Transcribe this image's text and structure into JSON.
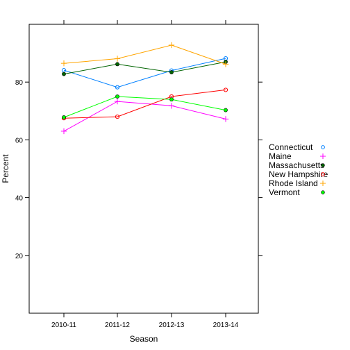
{
  "chart_data": {
    "type": "line",
    "title": "",
    "xlabel": "Season",
    "ylabel": "Percent",
    "categories": [
      "2010-11",
      "2011-12",
      "2012-13",
      "2013-14"
    ],
    "yticks": [
      20,
      40,
      60,
      80
    ],
    "ylim": [
      0,
      100
    ],
    "grid": false,
    "legend_position": "right",
    "series": [
      {
        "name": "Connecticut",
        "color": "#0080ff",
        "marker": "open-circle",
        "values": [
          84.1,
          78.2,
          84.0,
          88.2
        ]
      },
      {
        "name": "Maine",
        "color": "#ff00ff",
        "marker": "plus",
        "values": [
          63.0,
          73.3,
          71.8,
          67.2
        ]
      },
      {
        "name": "Massachusetts",
        "color": "#006400",
        "marker": "filled-circle",
        "values": [
          82.8,
          86.2,
          83.4,
          87.0
        ]
      },
      {
        "name": "New Hampshire",
        "color": "#ff0000",
        "marker": "open-circle",
        "values": [
          67.5,
          68.0,
          75.0,
          77.3
        ]
      },
      {
        "name": "Rhode Island",
        "color": "#ffa500",
        "marker": "plus",
        "values": [
          86.5,
          88.1,
          92.8,
          86.2
        ]
      },
      {
        "name": "Vermont",
        "color": "#00ff00",
        "marker": "filled-circle",
        "values": [
          67.8,
          75.0,
          74.0,
          70.3
        ]
      }
    ]
  }
}
